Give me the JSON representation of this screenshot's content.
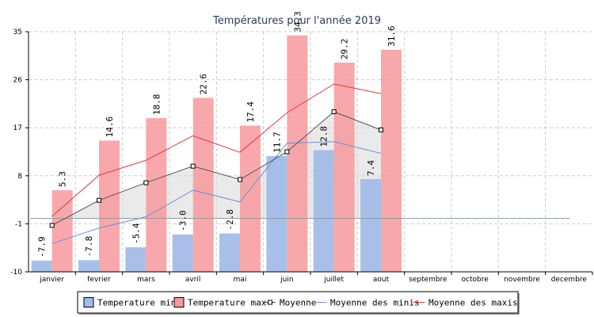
{
  "chart_data": {
    "type": "bar",
    "title": "Températures pour l'année 2019",
    "categories": [
      "janvier",
      "fevrier",
      "mars",
      "avril",
      "mai",
      "juin",
      "juillet",
      "aout",
      "septembre",
      "octobre",
      "novembre",
      "decembre"
    ],
    "ylim": [
      -10,
      35
    ],
    "yticks": [
      35,
      26,
      17,
      8,
      -1,
      -10
    ],
    "grid": true,
    "series": [
      {
        "name": "Temperature min",
        "kind": "bar",
        "color": "#a3bde8",
        "values": [
          -7.9,
          -7.8,
          -5.4,
          -3.0,
          -2.8,
          11.7,
          12.8,
          7.4,
          null,
          null,
          null,
          null
        ]
      },
      {
        "name": "Temperature max",
        "kind": "bar",
        "color": "#f7999c",
        "values": [
          5.3,
          14.6,
          18.8,
          22.6,
          17.4,
          34.3,
          29.2,
          31.6,
          null,
          null,
          null,
          null
        ]
      },
      {
        "name": "Moyenne",
        "kind": "line-markers",
        "color": "#555555",
        "values": [
          -1.3,
          3.4,
          6.7,
          9.8,
          7.3,
          12.5,
          20.0,
          16.6,
          null,
          null,
          null,
          null
        ]
      },
      {
        "name": "Moyenne des minis",
        "kind": "line",
        "color": "#6b8fdc",
        "values": [
          -4.7,
          -1.8,
          0.3,
          5.3,
          3.1,
          14.1,
          14.4,
          12.2,
          null,
          null,
          null,
          null
        ]
      },
      {
        "name": "Moyenne des maxis",
        "kind": "line",
        "color": "#e03a3a",
        "values": [
          0.4,
          8.1,
          10.9,
          15.5,
          12.4,
          19.8,
          25.2,
          23.4,
          null,
          null,
          null,
          null
        ]
      }
    ],
    "reference_line": {
      "value": 0,
      "color": "#8f98a0"
    },
    "legend": {
      "placement": "bottom",
      "items": [
        "Temperature min",
        "Temperature max",
        "Moyenne",
        "Moyenne des minis",
        "Moyenne des maxis"
      ]
    }
  }
}
